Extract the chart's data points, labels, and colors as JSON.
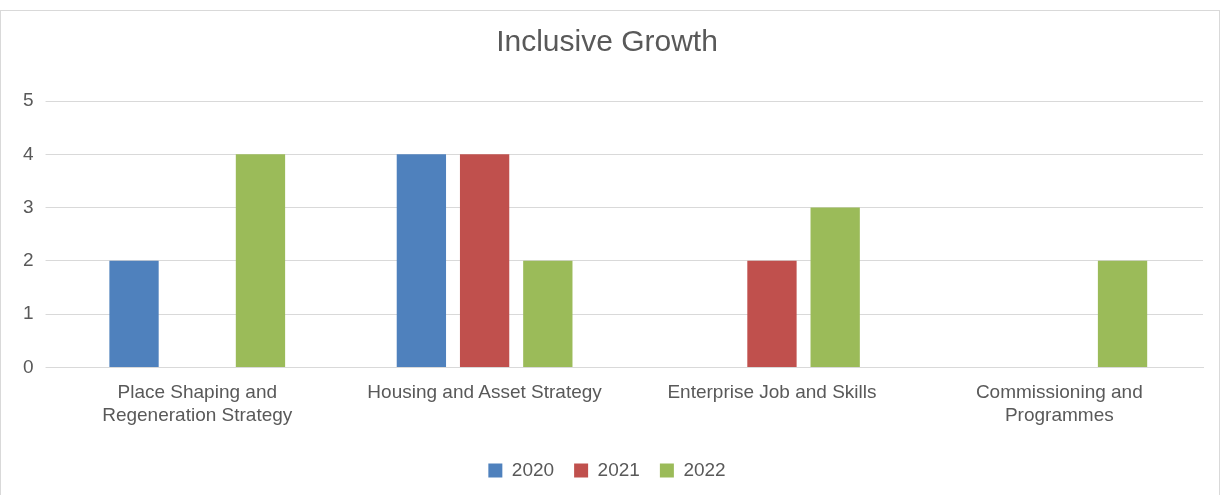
{
  "chart_data": {
    "type": "bar",
    "title": "Inclusive Growth",
    "categories": [
      "Place Shaping and Regeneration Strategy",
      "Housing and Asset Strategy",
      "Enterprise Job and Skills",
      "Commissioning and Programmes"
    ],
    "series": [
      {
        "name": "2020",
        "color": "#4f81bd",
        "values": [
          2,
          4,
          0,
          0
        ]
      },
      {
        "name": "2021",
        "color": "#c0504d",
        "values": [
          0,
          4,
          2,
          0
        ]
      },
      {
        "name": "2022",
        "color": "#9bbb59",
        "values": [
          4,
          2,
          3,
          2
        ]
      }
    ],
    "ylim": [
      0,
      5
    ],
    "yticks": [
      0,
      1,
      2,
      3,
      4,
      5
    ],
    "grid": "y",
    "legend": "bottom"
  }
}
